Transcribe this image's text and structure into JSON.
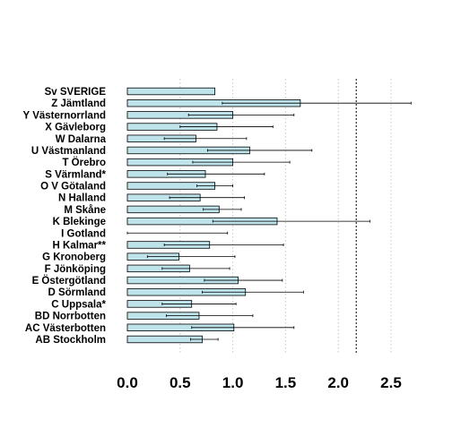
{
  "chart_data": {
    "type": "bar",
    "orientation": "horizontal",
    "title": "",
    "xlabel": "",
    "ylabel": "",
    "xlim": [
      0,
      2.5
    ],
    "xticks": [
      "0.0",
      "0.5",
      "1.0",
      "1.5",
      "2.0",
      "2.5"
    ],
    "xtick_values": [
      0,
      0.5,
      1.0,
      1.5,
      2.0,
      2.5
    ],
    "reference_line": 2.17,
    "grid": "vertical dotted at x ticks",
    "colors": {
      "bar_fill": "#bfe3ea",
      "bar_stroke": "#000000",
      "grid": "#c8c8c8"
    },
    "categories": [
      "Sv SVERIGE",
      "Z Jämtland",
      "Y Västernorrland",
      "X Gävleborg",
      "W Dalarna",
      "U Västmanland",
      "T Örebro",
      "S Värmland*",
      "O V Götaland",
      "N Halland",
      "M Skåne",
      "K Blekinge",
      "I Gotland",
      "H Kalmar**",
      "G Kronoberg",
      "F Jönköping",
      "E Östergötland",
      "D Sörmland",
      "C Uppsala*",
      "BD Norrbotten",
      "AC Västerbotten",
      "AB Stockholm"
    ],
    "series": [
      {
        "values": [
          0.83,
          1.64,
          1.0,
          0.85,
          0.65,
          1.16,
          1.0,
          0.74,
          0.83,
          0.69,
          0.87,
          1.42,
          0.0,
          0.78,
          0.49,
          0.59,
          1.05,
          1.12,
          0.61,
          0.68,
          1.01,
          0.71
        ],
        "ci_lower": [
          null,
          0.9,
          0.58,
          0.5,
          0.35,
          0.76,
          0.62,
          0.38,
          0.66,
          0.4,
          0.72,
          0.81,
          0.0,
          0.35,
          0.19,
          0.33,
          0.73,
          0.71,
          0.33,
          0.37,
          0.61,
          0.6
        ],
        "ci_upper": [
          null,
          2.69,
          1.58,
          1.38,
          1.13,
          1.75,
          1.54,
          1.3,
          1.0,
          1.11,
          1.08,
          2.3,
          0.95,
          1.48,
          1.02,
          0.97,
          1.47,
          1.67,
          1.03,
          1.19,
          1.58,
          0.86
        ]
      }
    ]
  }
}
